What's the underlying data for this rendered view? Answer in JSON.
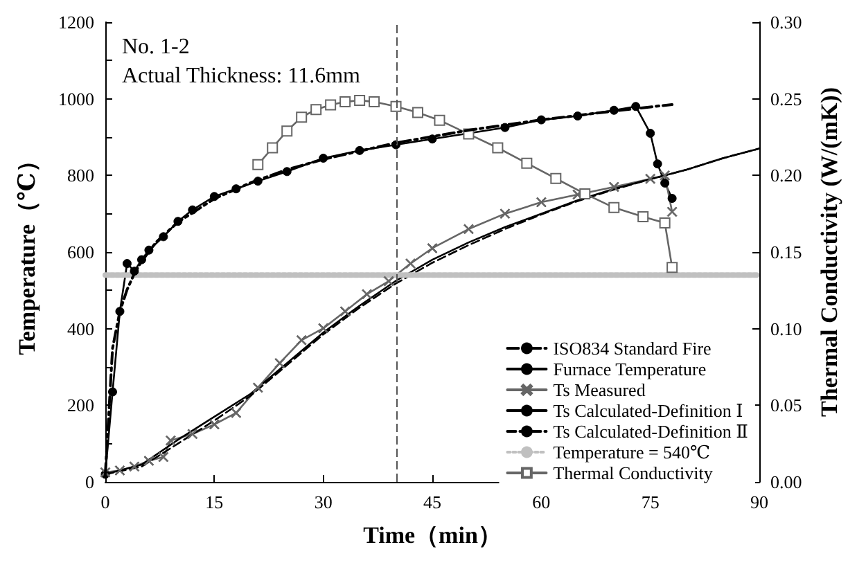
{
  "chart_data": {
    "type": "line",
    "xlabel": "Time（min）",
    "ylabel": "Temperature（℃）",
    "y2label": "Thermal Conductivity (W/(mK))",
    "annotations": [
      "No. 1-2",
      "Actual Thickness: 11.6mm"
    ],
    "xlim": [
      0,
      90
    ],
    "xticks": [
      0,
      15,
      30,
      45,
      60,
      75,
      90
    ],
    "ylim": [
      0,
      1200
    ],
    "yticks": [
      0,
      {
        "value": 100,
        "label": null
      },
      200,
      {
        "value": 300,
        "label": null
      },
      400,
      {
        "value": 500,
        "label": null
      },
      600,
      {
        "value": 700,
        "label": null
      },
      800,
      {
        "value": 900,
        "label": null
      },
      1000,
      {
        "value": 1100,
        "label": null
      },
      1200
    ],
    "y2lim": [
      0,
      0.3
    ],
    "y2ticks": [
      {
        "value": 0,
        "label": "0.00"
      },
      {
        "value": 0.05,
        "label": "0.05"
      },
      {
        "value": 0.1,
        "label": "0.10"
      },
      {
        "value": 0.15,
        "label": "0.15"
      },
      {
        "value": 0.2,
        "label": "0.20"
      },
      {
        "value": 0.25,
        "label": "0.25"
      },
      {
        "value": 0.3,
        "label": "0.30"
      }
    ],
    "grid": false,
    "legend": "bottom right",
    "ref_lines": [
      {
        "axis": "x",
        "value": 40,
        "color": "#555555",
        "line_style": "dashed"
      }
    ],
    "series": [
      {
        "name": "ISO834 Standard Fire",
        "color": "#000000",
        "line_style": "dashdot",
        "marker": "none",
        "x": [
          0,
          1,
          2,
          3,
          4,
          5,
          7,
          10,
          15,
          20,
          25,
          30,
          40,
          50,
          60,
          70,
          78
        ],
        "values": [
          20,
          349,
          445,
          502,
          544,
          576,
          626,
          678,
          739,
          781,
          815,
          842,
          885,
          918,
          945,
          968,
          985
        ]
      },
      {
        "name": "Furnace Temperature",
        "color": "#000000",
        "line_style": "solid",
        "marker": "circle",
        "x": [
          0,
          1,
          2,
          3,
          4,
          5,
          6,
          8,
          10,
          12,
          15,
          18,
          21,
          25,
          30,
          35,
          40,
          45,
          50,
          55,
          60,
          65,
          70,
          73,
          75,
          76,
          77,
          78
        ],
        "values": [
          20,
          235,
          445,
          570,
          550,
          580,
          605,
          640,
          680,
          710,
          745,
          765,
          785,
          810,
          845,
          865,
          880,
          895,
          910,
          925,
          945,
          955,
          970,
          980,
          910,
          830,
          780,
          740
        ]
      },
      {
        "name": "Ts Measured",
        "color": "#666666",
        "line_style": "solid",
        "marker": "cross",
        "x": [
          0,
          2,
          4,
          6,
          8,
          9,
          12,
          15,
          18,
          21,
          24,
          27,
          30,
          33,
          36,
          39,
          42,
          45,
          50,
          55,
          60,
          65,
          70,
          75,
          77,
          78
        ],
        "values": [
          25,
          30,
          40,
          55,
          65,
          108,
          125,
          150,
          180,
          246,
          310,
          370,
          401,
          445,
          490,
          524,
          570,
          610,
          660,
          700,
          730,
          750,
          770,
          791,
          800,
          705
        ]
      },
      {
        "name": "Ts Calculated-Definition Ⅰ",
        "color": "#000000",
        "line_style": "solid",
        "marker": "none",
        "x": [
          0,
          5,
          10,
          15,
          20,
          25,
          30,
          35,
          40,
          45,
          50,
          55,
          60,
          65,
          70,
          75,
          80,
          85,
          90
        ],
        "values": [
          20,
          45,
          110,
          170,
          230,
          310,
          390,
          460,
          525,
          580,
          625,
          665,
          700,
          735,
          765,
          790,
          815,
          845,
          870
        ]
      },
      {
        "name": "Ts Calculated-Definition Ⅱ",
        "color": "#000000",
        "line_style": "dashed",
        "marker": "none",
        "x": [
          0,
          5,
          10,
          15,
          20,
          25,
          30,
          35,
          40,
          45,
          50,
          55,
          60,
          65,
          70,
          75,
          80,
          85,
          90
        ],
        "values": [
          20,
          40,
          100,
          160,
          225,
          305,
          385,
          455,
          518,
          572,
          618,
          660,
          698,
          733,
          763,
          790,
          815,
          845,
          870
        ]
      },
      {
        "name": "Temperature = 540℃",
        "color": "#c0c0c0",
        "line_style": "dotted",
        "marker": "none",
        "x": [
          0,
          90
        ],
        "values": [
          540,
          540
        ]
      },
      {
        "name": "Thermal Conductivity",
        "color": "#666666",
        "line_style": "solid",
        "marker": "square",
        "axis": "y2",
        "x": [
          21,
          23,
          25,
          27,
          29,
          31,
          33,
          35,
          37,
          40,
          43,
          46,
          50,
          54,
          58,
          62,
          66,
          70,
          74,
          77,
          78
        ],
        "values": [
          0.207,
          0.218,
          0.229,
          0.238,
          0.243,
          0.246,
          0.248,
          0.249,
          0.248,
          0.245,
          0.241,
          0.236,
          0.227,
          0.218,
          0.208,
          0.198,
          0.188,
          0.179,
          0.173,
          0.169,
          0.14
        ]
      }
    ]
  }
}
